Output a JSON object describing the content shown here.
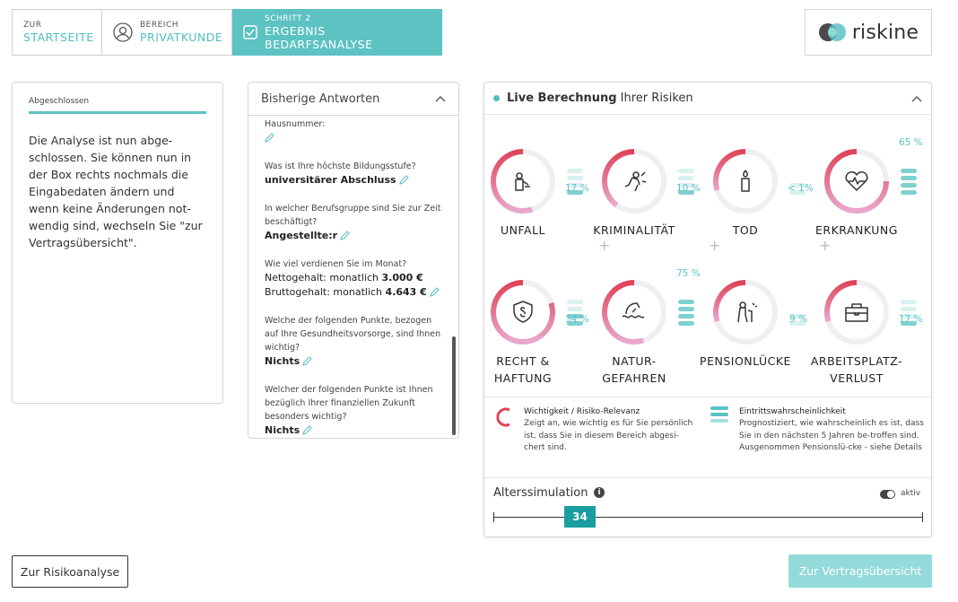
{
  "nav": {
    "items": [
      {
        "small": "ZUR",
        "big": "STARTSEITE"
      },
      {
        "small": "BEREICH",
        "big": "PRIVATKUNDE"
      },
      {
        "small": "SCHRITT 2",
        "big": "ERGEBNIS BEDARFSANALYSE"
      }
    ],
    "logo": "riskine"
  },
  "info_panel": {
    "caption": "Abgeschlossen",
    "text": "Die Analyse ist nun abge-schlossen. Sie können nun in der Box rechts nochmals die Eingabedaten ändern und wenn keine Änderungen not-wendig sind, wechseln Sie \"zur Vertragsübersicht\"."
  },
  "answers": {
    "title": "Bisherige Antworten",
    "items": [
      {
        "q": "Hausnummer:",
        "a": ""
      },
      {
        "q": "Was ist Ihre höchste Bildungsstufe?",
        "a": "universitärer Abschluss"
      },
      {
        "q": "In welcher Berufsgruppe sind Sie zur Zeit beschäftigt?",
        "a": "Angestellte:r"
      },
      {
        "q": "Wie viel verdienen Sie im Monat?",
        "a1_label": "Nettogehalt: monatlich",
        "a1_value": "3.000 €",
        "a2_label": "Bruttogehalt: monatlich",
        "a2_value": "4.643 €"
      },
      {
        "q": "Welche der folgenden Punkte, bezogen auf Ihre Gesundheitsvorsorge, sind Ihnen wichtig?",
        "a": "Nichts"
      },
      {
        "q": "Welcher der folgenden Punkte ist Ihnen bezüglich Ihrer finanziellen Zukunft besonders wichtig?",
        "a": "Nichts"
      }
    ]
  },
  "live": {
    "title_bold": "Live Berechnung",
    "title_rest": " Ihrer Risiken",
    "risks": [
      {
        "label": "UNFALL",
        "pct": "17 %",
        "importance": 0.55,
        "bars": 1,
        "icon": "accident-icon"
      },
      {
        "label": "KRIMINALITÄT",
        "pct": "10 %",
        "importance": 0.4,
        "bars": 1,
        "icon": "crime-icon"
      },
      {
        "label": "TOD",
        "pct": "< 1%",
        "importance": 0.3,
        "bars": 0,
        "icon": "death-candle-icon"
      },
      {
        "label": "ERKRANKUNG",
        "pct": "65 %",
        "importance": 0.75,
        "bars": 4,
        "icon": "illness-heart-icon"
      },
      {
        "label": "RECHT & HAFTUNG",
        "pct": "34 %",
        "importance": 0.8,
        "bars": 2,
        "icon": "law-shield-icon"
      },
      {
        "label": "NATUR-GEFAHREN",
        "pct": "75 %",
        "importance": 0.55,
        "bars": 4,
        "icon": "nature-flood-icon"
      },
      {
        "label": "PENSIONLÜCKE",
        "pct": "9 %",
        "importance": 0.3,
        "bars": 0,
        "icon": "pension-elderly-icon"
      },
      {
        "label": "ARBEITSPLATZ-VERLUST",
        "pct": "17 %",
        "importance": 0.3,
        "bars": 1,
        "icon": "job-briefcase-icon"
      }
    ],
    "legend": {
      "importance_title": "Wichtigkeit / Risiko-Relevanz",
      "importance_text": "Zeigt an, wie wichtig es für Sie persönlich ist, dass Sie in diesem Bereich abgesi-chert sind.",
      "probability_title": "Eintrittswahrscheinlichkeit",
      "probability_text": "Prognostiziert, wie wahrscheinlich es ist, dass Sie in den nächsten 5 Jahren be-troffen sind. Ausgenommen Pensionslü-cke - siehe Details"
    },
    "age_sim": {
      "title": "Alterssimulation",
      "toggle_label": "aktiv",
      "age": "34"
    }
  },
  "buttons": {
    "left": "Zur Risikoanalyse",
    "right": "Zur Vertragsübersicht"
  },
  "colors": {
    "teal": "#5cc2c2",
    "red": "#e0445a",
    "pink": "#e8a8cc"
  }
}
